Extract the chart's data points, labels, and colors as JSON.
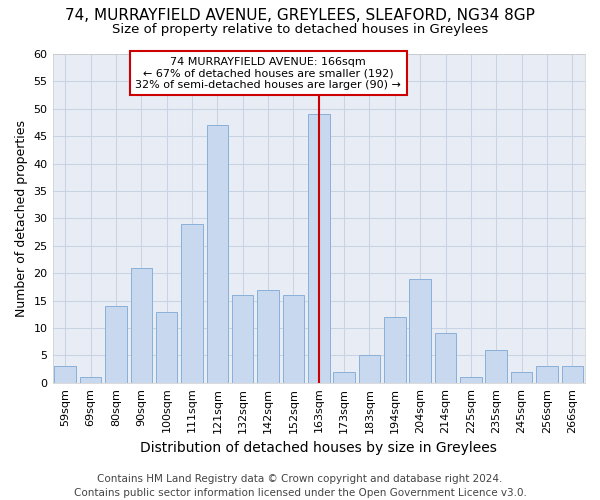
{
  "title1": "74, MURRAYFIELD AVENUE, GREYLEES, SLEAFORD, NG34 8GP",
  "title2": "Size of property relative to detached houses in Greylees",
  "xlabel": "Distribution of detached houses by size in Greylees",
  "ylabel": "Number of detached properties",
  "footer1": "Contains HM Land Registry data © Crown copyright and database right 2024.",
  "footer2": "Contains public sector information licensed under the Open Government Licence v3.0.",
  "annotation_line1": "74 MURRAYFIELD AVENUE: 166sqm",
  "annotation_line2": "← 67% of detached houses are smaller (192)",
  "annotation_line3": "32% of semi-detached houses are larger (90) →",
  "bar_labels": [
    "59sqm",
    "69sqm",
    "80sqm",
    "90sqm",
    "100sqm",
    "111sqm",
    "121sqm",
    "132sqm",
    "142sqm",
    "152sqm",
    "163sqm",
    "173sqm",
    "183sqm",
    "194sqm",
    "204sqm",
    "214sqm",
    "225sqm",
    "235sqm",
    "245sqm",
    "256sqm",
    "266sqm"
  ],
  "bar_values": [
    3,
    1,
    14,
    21,
    13,
    29,
    47,
    16,
    17,
    16,
    49,
    2,
    5,
    12,
    19,
    9,
    1,
    6,
    2,
    3,
    3
  ],
  "bar_color": "#c8d8ee",
  "bar_edge_color": "#8ab0d8",
  "bar_width": 0.85,
  "vline_index": 10,
  "vline_color": "#cc0000",
  "annotation_box_edgecolor": "#cc0000",
  "ylim": [
    0,
    60
  ],
  "yticks": [
    0,
    5,
    10,
    15,
    20,
    25,
    30,
    35,
    40,
    45,
    50,
    55,
    60
  ],
  "grid_color": "#c8d4e4",
  "plot_bg_color": "#e8edf5",
  "fig_bg_color": "#ffffff",
  "title1_fontsize": 11,
  "title2_fontsize": 9.5,
  "ylabel_fontsize": 9,
  "xlabel_fontsize": 10,
  "tick_fontsize": 8,
  "annotation_fontsize": 8,
  "footer_fontsize": 7.5
}
